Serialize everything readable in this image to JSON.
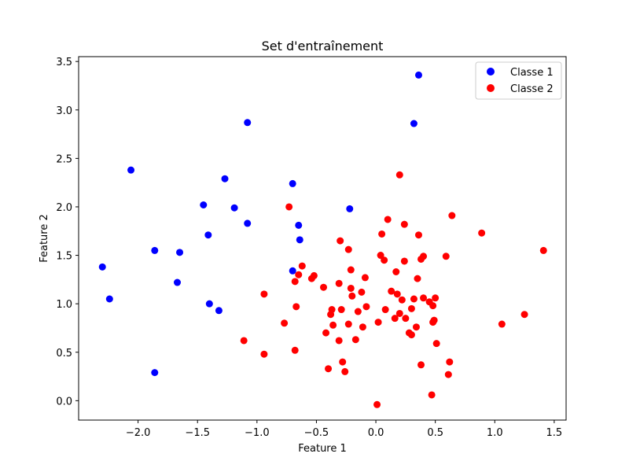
{
  "chart_data": {
    "type": "scatter",
    "title": "Set d'entraînement",
    "xlabel": "Feature 1",
    "ylabel": "Feature 2",
    "xlim": [
      -2.5,
      1.6
    ],
    "ylim": [
      -0.2,
      3.55
    ],
    "xticks": [
      -2.0,
      -1.5,
      -1.0,
      -0.5,
      0.0,
      0.5,
      1.0,
      1.5
    ],
    "xtick_labels": [
      "−2.0",
      "−1.5",
      "−1.0",
      "−0.5",
      "0.0",
      "0.5",
      "1.0",
      "1.5"
    ],
    "yticks": [
      0.0,
      0.5,
      1.0,
      1.5,
      2.0,
      2.5,
      3.0,
      3.5
    ],
    "ytick_labels": [
      "0.0",
      "0.5",
      "1.0",
      "1.5",
      "2.0",
      "2.5",
      "3.0",
      "3.5"
    ],
    "grid": false,
    "legend_position": "top-right",
    "series": [
      {
        "name": "Classe 1",
        "color": "#0000ff",
        "points": [
          [
            0.36,
            3.36
          ],
          [
            -1.08,
            2.87
          ],
          [
            0.32,
            2.86
          ],
          [
            -2.06,
            2.38
          ],
          [
            -1.27,
            2.29
          ],
          [
            -0.7,
            2.24
          ],
          [
            -1.45,
            2.02
          ],
          [
            -1.19,
            1.99
          ],
          [
            -0.22,
            1.98
          ],
          [
            -1.08,
            1.83
          ],
          [
            -0.65,
            1.81
          ],
          [
            -1.41,
            1.71
          ],
          [
            -0.64,
            1.66
          ],
          [
            -1.86,
            1.55
          ],
          [
            -1.65,
            1.53
          ],
          [
            -2.3,
            1.38
          ],
          [
            -0.7,
            1.34
          ],
          [
            -1.67,
            1.22
          ],
          [
            -2.24,
            1.05
          ],
          [
            -1.4,
            1.0
          ],
          [
            -1.32,
            0.93
          ],
          [
            -1.86,
            0.29
          ]
        ]
      },
      {
        "name": "Classe 2",
        "color": "#ff0000",
        "points": [
          [
            0.2,
            2.33
          ],
          [
            -0.73,
            2.0
          ],
          [
            0.64,
            1.91
          ],
          [
            0.1,
            1.87
          ],
          [
            0.24,
            1.82
          ],
          [
            0.89,
            1.73
          ],
          [
            0.05,
            1.72
          ],
          [
            0.36,
            1.71
          ],
          [
            -0.3,
            1.65
          ],
          [
            -0.23,
            1.56
          ],
          [
            1.41,
            1.55
          ],
          [
            0.04,
            1.5
          ],
          [
            0.59,
            1.49
          ],
          [
            0.4,
            1.49
          ],
          [
            0.07,
            1.45
          ],
          [
            0.24,
            1.44
          ],
          [
            0.38,
            1.46
          ],
          [
            -0.62,
            1.39
          ],
          [
            -0.21,
            1.35
          ],
          [
            0.17,
            1.33
          ],
          [
            -0.65,
            1.3
          ],
          [
            -0.52,
            1.29
          ],
          [
            -0.54,
            1.26
          ],
          [
            -0.09,
            1.27
          ],
          [
            0.35,
            1.26
          ],
          [
            -0.68,
            1.23
          ],
          [
            -0.31,
            1.21
          ],
          [
            -0.44,
            1.17
          ],
          [
            -0.21,
            1.16
          ],
          [
            0.13,
            1.13
          ],
          [
            -0.12,
            1.12
          ],
          [
            0.18,
            1.1
          ],
          [
            -0.2,
            1.08
          ],
          [
            0.4,
            1.06
          ],
          [
            0.5,
            1.06
          ],
          [
            0.22,
            1.04
          ],
          [
            0.32,
            1.05
          ],
          [
            0.45,
            1.02
          ],
          [
            0.48,
            0.98
          ],
          [
            -0.67,
            0.97
          ],
          [
            -0.08,
            0.97
          ],
          [
            -0.29,
            0.94
          ],
          [
            -0.37,
            0.94
          ],
          [
            0.08,
            0.94
          ],
          [
            0.3,
            0.95
          ],
          [
            -0.15,
            0.92
          ],
          [
            -0.38,
            0.89
          ],
          [
            0.2,
            0.9
          ],
          [
            0.16,
            0.85
          ],
          [
            0.25,
            0.85
          ],
          [
            0.49,
            0.83
          ],
          [
            0.48,
            0.81
          ],
          [
            0.02,
            0.81
          ],
          [
            -0.77,
            0.8
          ],
          [
            -0.23,
            0.79
          ],
          [
            -0.36,
            0.78
          ],
          [
            1.06,
            0.79
          ],
          [
            -0.11,
            0.76
          ],
          [
            0.34,
            0.76
          ],
          [
            1.25,
            0.89
          ],
          [
            -0.42,
            0.7
          ],
          [
            0.28,
            0.7
          ],
          [
            0.3,
            0.68
          ],
          [
            -0.17,
            0.63
          ],
          [
            -0.31,
            0.62
          ],
          [
            -1.11,
            0.62
          ],
          [
            0.51,
            0.59
          ],
          [
            -0.68,
            0.52
          ],
          [
            -0.94,
            0.48
          ],
          [
            0.62,
            0.4
          ],
          [
            -0.28,
            0.4
          ],
          [
            0.38,
            0.37
          ],
          [
            -0.4,
            0.33
          ],
          [
            -0.26,
            0.3
          ],
          [
            0.61,
            0.27
          ],
          [
            0.47,
            0.06
          ],
          [
            0.01,
            -0.04
          ],
          [
            -0.94,
            1.1
          ]
        ]
      }
    ]
  }
}
